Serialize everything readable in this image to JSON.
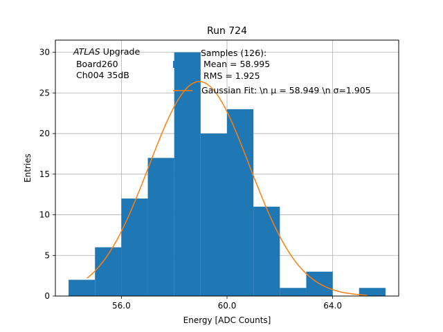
{
  "chart_data": {
    "type": "bar",
    "title": "Run 724",
    "xlabel": "Energy [ADC Counts]",
    "ylabel": "Entries",
    "xlim": [
      53.5,
      66.5
    ],
    "ylim": [
      0,
      31.5
    ],
    "xticks": [
      56,
      60,
      64
    ],
    "xtick_labels": [
      "56.0",
      "60.0",
      "64.0"
    ],
    "yticks": [
      0,
      5,
      10,
      15,
      20,
      25,
      30
    ],
    "ytick_labels": [
      "0",
      "5",
      "10",
      "15",
      "20",
      "25",
      "30"
    ],
    "grid": true,
    "histogram": {
      "name": "Samples (126):",
      "bin_edges": [
        54,
        55,
        56,
        57,
        58,
        59,
        60,
        61,
        62,
        63,
        64,
        65,
        66
      ],
      "counts": [
        2,
        6,
        12,
        17,
        30,
        20,
        23,
        11,
        1,
        3,
        0,
        1
      ],
      "color": "#1f77b4"
    },
    "fit": {
      "name": "Gaussian Fit",
      "mu": 58.949,
      "sigma": 1.905,
      "amplitude": 26.4,
      "x_range": [
        54.7,
        65.3
      ],
      "color": "#ff7f0e"
    },
    "legend": {
      "position": "top-right",
      "entries": [
        {
          "kind": "patch",
          "lines": [
            "Samples (126):",
            " Mean = 58.995",
            " RMS = 1.925"
          ]
        },
        {
          "kind": "line",
          "lines": [
            "Gaussian Fit: \\n μ = 58.949 \\n σ=1.905"
          ]
        }
      ]
    },
    "annotation": {
      "atlas": "ATLAS",
      "upgrade": " Upgrade",
      "line2": " Board260",
      "line3": " Ch004 35dB"
    }
  }
}
